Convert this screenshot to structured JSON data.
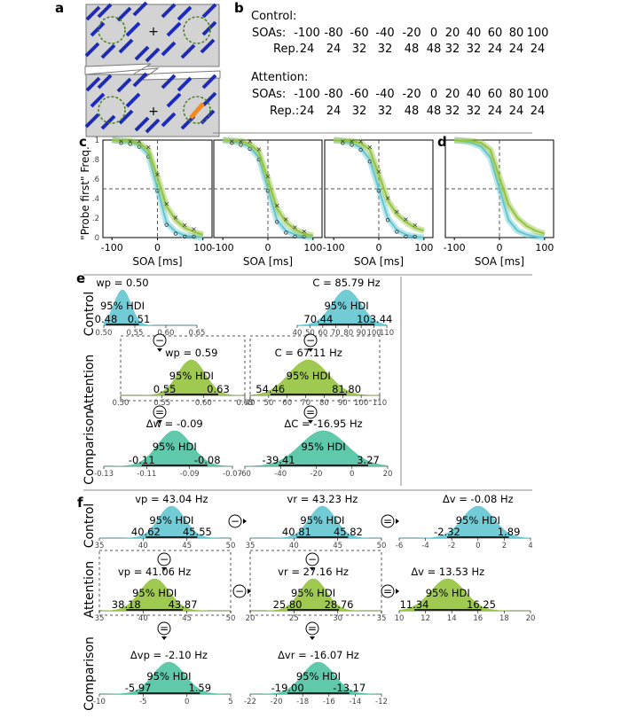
{
  "panel_labels": {
    "a": "a",
    "b": "b",
    "c": "c",
    "d": "d",
    "e": "e",
    "f": "f"
  },
  "colors": {
    "cyan": "#63c7d2",
    "green": "#95c33d",
    "teal": "#4fc3a3",
    "orange": "#f08a1e",
    "bar": "#1c2bb8",
    "stimbg": "#d3d3d3"
  },
  "panel_b": {
    "control_title": "Control:",
    "attention_title": "Attention:",
    "soas_label": "SOAs:",
    "rep_label_control": "Rep.",
    "rep_label_attention": "Rep.:",
    "soas": [
      "-100",
      "-80",
      "-60",
      "-40",
      "-20",
      "0",
      "20",
      "40",
      "60",
      "80",
      "100"
    ],
    "reps": [
      "24",
      "24",
      "32",
      "32",
      "48",
      "48",
      "32",
      "32",
      "24",
      "24",
      "24"
    ]
  },
  "panel_c": {
    "ylabel": "\"Probe first\" Freq.",
    "ytick_labels": [
      "1",
      ".8",
      ".6",
      ".4",
      ".2",
      "0"
    ],
    "xtick_labels": [
      "-100",
      "0",
      "100"
    ],
    "xlabel": "SOA [ms]"
  },
  "chart_data": [
    {
      "type": "line",
      "id": "c1",
      "x": [
        -100,
        -80,
        -60,
        -40,
        -20,
        0,
        20,
        40,
        60,
        80,
        100
      ],
      "series": [
        {
          "name": "Control",
          "color": "#63c7d2",
          "values": [
            1,
            0.99,
            0.98,
            0.95,
            0.85,
            0.5,
            0.15,
            0.06,
            0.02,
            0.01,
            0
          ]
        },
        {
          "name": "Attention",
          "color": "#95c33d",
          "values": [
            1,
            0.995,
            0.99,
            0.97,
            0.9,
            0.62,
            0.32,
            0.18,
            0.1,
            0.06,
            0.03
          ]
        }
      ],
      "xlabel": "SOA [ms]",
      "ylabel": "\"Probe first\" Freq.",
      "xlim": [
        -120,
        120
      ],
      "ylim": [
        0,
        1
      ]
    },
    {
      "type": "line",
      "id": "c2",
      "x": [
        -100,
        -80,
        -60,
        -40,
        -20,
        0,
        20,
        40,
        60,
        80,
        100
      ],
      "series": [
        {
          "name": "Control",
          "color": "#63c7d2",
          "values": [
            1,
            0.99,
            0.97,
            0.93,
            0.82,
            0.5,
            0.18,
            0.07,
            0.03,
            0.01,
            0
          ]
        },
        {
          "name": "Attention",
          "color": "#95c33d",
          "values": [
            1,
            0.995,
            0.99,
            0.96,
            0.88,
            0.6,
            0.3,
            0.16,
            0.08,
            0.04,
            0.02
          ]
        }
      ],
      "xlabel": "SOA [ms]",
      "xlim": [
        -120,
        120
      ],
      "ylim": [
        0,
        1
      ]
    },
    {
      "type": "line",
      "id": "c3",
      "x": [
        -100,
        -80,
        -60,
        -40,
        -20,
        0,
        20,
        40,
        60,
        80,
        100
      ],
      "series": [
        {
          "name": "Control",
          "color": "#63c7d2",
          "values": [
            1,
            0.99,
            0.97,
            0.92,
            0.8,
            0.5,
            0.2,
            0.08,
            0.03,
            0.01,
            0
          ]
        },
        {
          "name": "Attention",
          "color": "#95c33d",
          "values": [
            1,
            0.995,
            0.99,
            0.97,
            0.9,
            0.65,
            0.38,
            0.24,
            0.16,
            0.1,
            0.07
          ]
        }
      ],
      "xlabel": "SOA [ms]",
      "xlim": [
        -120,
        120
      ],
      "ylim": [
        0,
        1
      ]
    },
    {
      "type": "line",
      "id": "d",
      "x": [
        -100,
        -80,
        -60,
        -40,
        -20,
        0,
        20,
        40,
        60,
        80,
        100
      ],
      "series": [
        {
          "name": "Control",
          "color": "#63c7d2",
          "values": [
            1,
            0.99,
            0.97,
            0.93,
            0.82,
            0.5,
            0.18,
            0.07,
            0.03,
            0.01,
            0
          ]
        },
        {
          "name": "Attention",
          "color": "#95c33d",
          "values": [
            1,
            0.995,
            0.99,
            0.97,
            0.9,
            0.62,
            0.34,
            0.2,
            0.12,
            0.07,
            0.04
          ]
        }
      ],
      "xlabel": "SOA [ms]",
      "xlim": [
        -120,
        120
      ],
      "ylim": [
        0,
        1
      ]
    },
    {
      "type": "area",
      "id": "e_wp_control",
      "title": "wp = 0.50",
      "hdi": [
        "0.48",
        "0.51"
      ],
      "ticks": [
        "0.50",
        "0.55",
        "0.60",
        "0.65"
      ]
    },
    {
      "type": "area",
      "id": "e_C_control",
      "title": "C = 85.79 Hz",
      "hdi": [
        "70.44",
        "103.44"
      ],
      "ticks": [
        "40",
        "50",
        "60",
        "70",
        "80",
        "90",
        "100",
        "110"
      ]
    },
    {
      "type": "area",
      "id": "e_wp_attention",
      "title": "wp = 0.59",
      "hdi": [
        "0.55",
        "0.63"
      ],
      "ticks": [
        "0.50",
        "0.55",
        "0.60",
        "0.65"
      ]
    },
    {
      "type": "area",
      "id": "e_C_attention",
      "title": "C = 67.11 Hz",
      "hdi": [
        "54.46",
        "81.80"
      ],
      "ticks": [
        "40",
        "50",
        "60",
        "70",
        "80",
        "90",
        "100",
        "110"
      ]
    },
    {
      "type": "area",
      "id": "e_dw",
      "title": "Δw = -0.09",
      "hdi": [
        "-0.11",
        "-0.08"
      ],
      "ticks": [
        "-0.13",
        "-0.11",
        "-0.09",
        "-0.07"
      ]
    },
    {
      "type": "area",
      "id": "e_dC",
      "title": "ΔC = -16.95 Hz",
      "hdi": [
        "-39.41",
        "3.27"
      ],
      "ticks": [
        "-60",
        "-40",
        "-20",
        "0",
        "20"
      ]
    },
    {
      "type": "area",
      "id": "f_vp_control",
      "title": "vp = 43.04 Hz",
      "hdi": [
        "40.62",
        "45.55"
      ],
      "ticks": [
        "35",
        "40",
        "45",
        "50"
      ]
    },
    {
      "type": "area",
      "id": "f_vr_control",
      "title": "vr = 43.23 Hz",
      "hdi": [
        "40.81",
        "45.82"
      ],
      "ticks": [
        "35",
        "40",
        "45",
        "50"
      ]
    },
    {
      "type": "area",
      "id": "f_dv_control",
      "title": "Δv = -0.08 Hz",
      "hdi": [
        "-2.32",
        "1.89"
      ],
      "ticks": [
        "-6",
        "-4",
        "-2",
        "0",
        "2",
        "4"
      ]
    },
    {
      "type": "area",
      "id": "f_vp_attention",
      "title": "vp = 41.06 Hz",
      "hdi": [
        "38.18",
        "43.87"
      ],
      "ticks": [
        "35",
        "40",
        "45",
        "50"
      ]
    },
    {
      "type": "area",
      "id": "f_vr_attention",
      "title": "vr = 27.16 Hz",
      "hdi": [
        "25.80",
        "28.76"
      ],
      "ticks": [
        "20",
        "25",
        "30",
        "35"
      ]
    },
    {
      "type": "area",
      "id": "f_dv_attention",
      "title": "Δv = 13.53 Hz",
      "hdi": [
        "11.34",
        "16.25"
      ],
      "ticks": [
        "10",
        "12",
        "14",
        "16",
        "18",
        "20"
      ]
    },
    {
      "type": "area",
      "id": "f_dvp",
      "title": "Δvp = -2.10 Hz",
      "hdi": [
        "-5.97",
        "1.59"
      ],
      "ticks": [
        "-10",
        "-5",
        "0",
        "5"
      ]
    },
    {
      "type": "area",
      "id": "f_dvr",
      "title": "Δvr = -16.07 Hz",
      "hdi": [
        "-19.00",
        "-13.17"
      ],
      "ticks": [
        "-22",
        "-20",
        "-18",
        "-16",
        "-14",
        "-12"
      ]
    }
  ],
  "hdi_label": "95% HDI",
  "row_labels": {
    "control": "Control",
    "attention": "Attention",
    "comparison": "Comparison"
  },
  "panel_e": {
    "wp_control_title": "wp = 0.50",
    "wp_control_lo": "0.48",
    "wp_control_hi": "0.51",
    "C_control_title": "C = 85.79 Hz",
    "C_control_lo": "70.44",
    "C_control_hi": "103.44",
    "wp_attention_title": "wp = 0.59",
    "wp_attention_lo": "0.55",
    "wp_attention_hi": "0.63",
    "C_attention_title": "C = 67.11 Hz",
    "C_attention_lo": "54.46",
    "C_attention_hi": "81.80",
    "dw_title": "Δw = -0.09",
    "dw_lo": "-0.11",
    "dw_hi": "-0.08",
    "dC_title": "ΔC = -16.95 Hz",
    "dC_lo": "-39.41",
    "dC_hi": "3.27"
  },
  "panel_f": {
    "vp_control_title": "vp = 43.04 Hz",
    "vp_control_lo": "40.62",
    "vp_control_hi": "45.55",
    "vr_control_title": "vr = 43.23 Hz",
    "vr_control_lo": "40.81",
    "vr_control_hi": "45.82",
    "dv_control_title": "Δv = -0.08 Hz",
    "dv_control_lo": "-2.32",
    "dv_control_hi": "1.89",
    "vp_attention_title": "vp = 41.06 Hz",
    "vp_attention_lo": "38.18",
    "vp_attention_hi": "43.87",
    "vr_attention_title": "vr = 27.16 Hz",
    "vr_attention_lo": "25.80",
    "vr_attention_hi": "28.76",
    "dv_attention_title": "Δv = 13.53 Hz",
    "dv_attention_lo": "11.34",
    "dv_attention_hi": "16.25",
    "dvp_title": "Δvp = -2.10 Hz",
    "dvp_lo": "-5.97",
    "dvp_hi": "1.59",
    "dvr_title": "Δvr = -16.07 Hz",
    "dvr_lo": "-19.00",
    "dvr_hi": "-13.17"
  },
  "operators": {
    "minus": "−",
    "equals": "="
  }
}
